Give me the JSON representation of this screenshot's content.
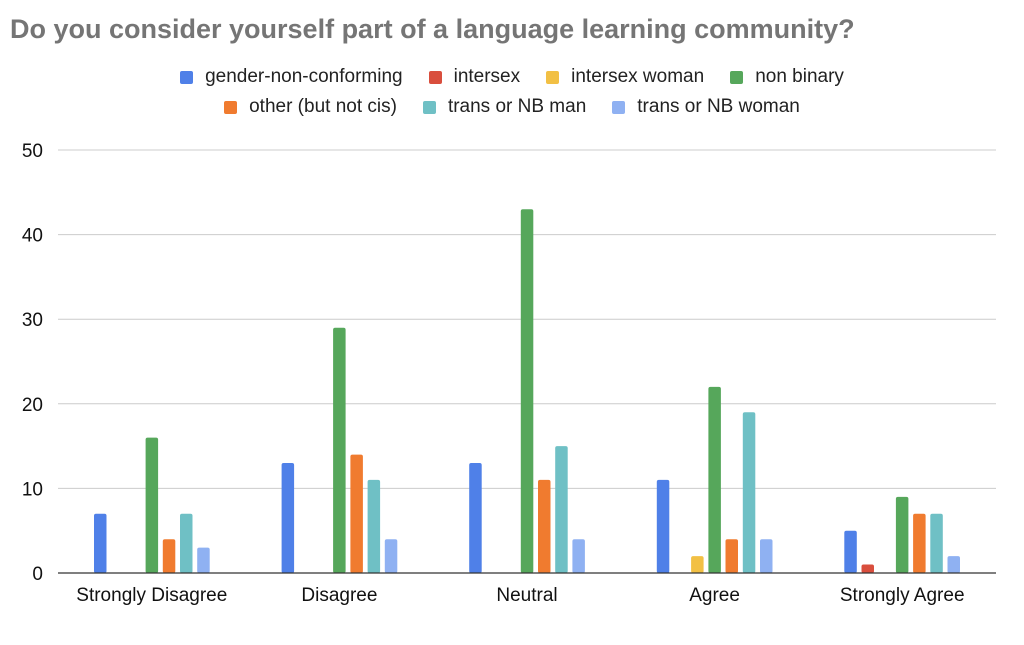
{
  "chart_data": {
    "type": "bar",
    "title": "Do you consider yourself part of a language learning community?",
    "xlabel": "",
    "ylabel": "",
    "categories": [
      "Strongly Disagree",
      "Disagree",
      "Neutral",
      "Agree",
      "Strongly Agree"
    ],
    "ylim": [
      0,
      50
    ],
    "yticks": [
      0,
      10,
      20,
      30,
      40,
      50
    ],
    "grid": true,
    "legend_position": "top",
    "series": [
      {
        "name": "gender-non-conforming",
        "color": "#4f80e8",
        "values": [
          7,
          13,
          13,
          11,
          5
        ]
      },
      {
        "name": "intersex",
        "color": "#d94e3d",
        "values": [
          0,
          0,
          0,
          0,
          1
        ]
      },
      {
        "name": "intersex woman",
        "color": "#f2c044",
        "values": [
          0,
          0,
          0,
          2,
          0
        ]
      },
      {
        "name": "non binary",
        "color": "#56a75b",
        "values": [
          16,
          29,
          43,
          22,
          9
        ]
      },
      {
        "name": "other (but not cis)",
        "color": "#f07b2f",
        "values": [
          4,
          14,
          11,
          4,
          7
        ]
      },
      {
        "name": "trans or NB man",
        "color": "#6fc0c5",
        "values": [
          7,
          11,
          15,
          19,
          7
        ]
      },
      {
        "name": "trans or NB woman",
        "color": "#8fb1f2",
        "values": [
          3,
          4,
          4,
          4,
          2
        ]
      }
    ]
  }
}
